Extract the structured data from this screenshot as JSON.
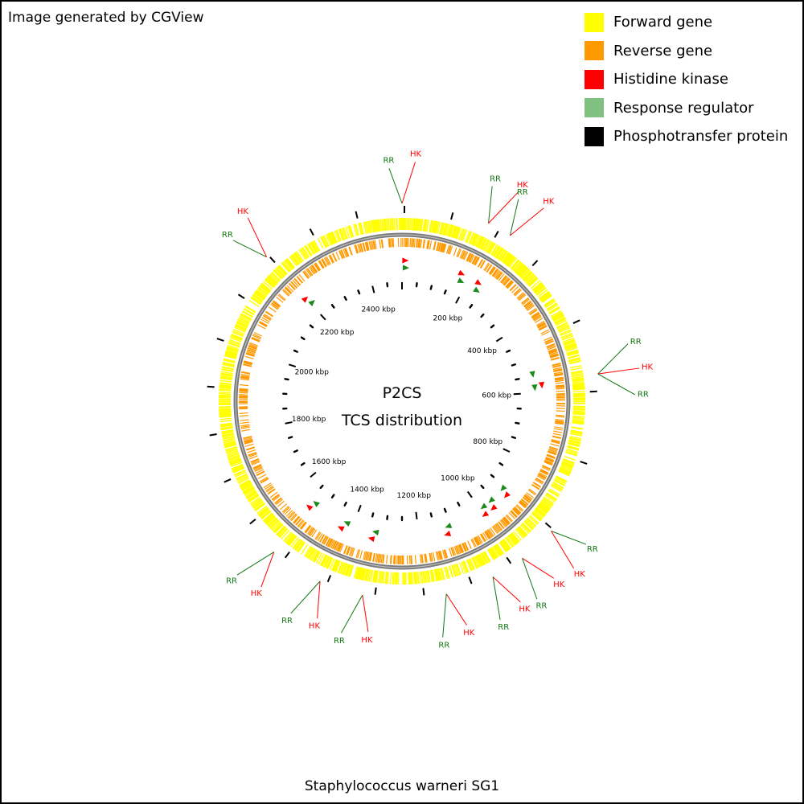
{
  "credit": "Image generated by CGView",
  "legend": [
    {
      "label": "Forward gene",
      "color": "#ffff00"
    },
    {
      "label": "Reverse gene",
      "color": "#ff9900"
    },
    {
      "label": "Histidine kinase",
      "color": "#ff0000"
    },
    {
      "label": "Response regulator",
      "color": "#80c080"
    },
    {
      "label": "Phosphotransfer protein",
      "color": "#000000"
    }
  ],
  "center": {
    "line1": "P2CS",
    "line2": "TCS distribution"
  },
  "caption": "Staphylococcus warneri SG1",
  "map": {
    "genome_length_kbp": 2500,
    "major_tick_step_kbp": 200,
    "minor_tick_step_kbp": 50,
    "tick_label_unit": "kbp",
    "tick_labels": [
      "200 kbp",
      "400 kbp",
      "600 kbp",
      "800 kbp",
      "1000 kbp",
      "1200 kbp",
      "1400 kbp",
      "1600 kbp",
      "1800 kbp",
      "2000 kbp",
      "2200 kbp",
      "2400 kbp"
    ],
    "tcs_labels": [
      {
        "pos_kbp": 0,
        "items": [
          {
            "text": "RR",
            "type": "RR"
          },
          {
            "text": "HK",
            "type": "HK"
          }
        ]
      },
      {
        "pos_kbp": 180,
        "items": [
          {
            "text": "RR",
            "type": "RR"
          },
          {
            "text": "HK",
            "type": "HK"
          }
        ]
      },
      {
        "pos_kbp": 230,
        "items": [
          {
            "text": "RR",
            "type": "RR"
          },
          {
            "text": "HK",
            "type": "HK"
          }
        ]
      },
      {
        "pos_kbp": 570,
        "items": [
          {
            "text": "RR",
            "type": "RR"
          },
          {
            "text": "HK",
            "type": "HK"
          },
          {
            "text": "RR",
            "type": "RR"
          }
        ]
      },
      {
        "pos_kbp": 910,
        "items": [
          {
            "text": "RR",
            "type": "RR"
          },
          {
            "text": "HK",
            "type": "HK"
          }
        ]
      },
      {
        "pos_kbp": 990,
        "items": [
          {
            "text": "HK",
            "type": "HK"
          },
          {
            "text": "RR",
            "type": "RR"
          }
        ]
      },
      {
        "pos_kbp": 1060,
        "items": [
          {
            "text": "HK",
            "type": "HK"
          },
          {
            "text": "RR",
            "type": "RR"
          }
        ]
      },
      {
        "pos_kbp": 1160,
        "items": [
          {
            "text": "HK",
            "type": "HK"
          },
          {
            "text": "RR",
            "type": "RR"
          }
        ]
      },
      {
        "pos_kbp": 1330,
        "items": [
          {
            "text": "HK",
            "type": "HK"
          },
          {
            "text": "RR",
            "type": "RR"
          }
        ]
      },
      {
        "pos_kbp": 1420,
        "items": [
          {
            "text": "HK",
            "type": "HK"
          },
          {
            "text": "RR",
            "type": "RR"
          }
        ]
      },
      {
        "pos_kbp": 1530,
        "items": [
          {
            "text": "HK",
            "type": "HK"
          },
          {
            "text": "RR",
            "type": "RR"
          }
        ]
      },
      {
        "pos_kbp": 2200,
        "items": [
          {
            "text": "RR",
            "type": "RR"
          },
          {
            "text": "HK",
            "type": "HK"
          }
        ]
      }
    ],
    "tcs_markers": [
      {
        "pos_kbp": 10,
        "type": "HK"
      },
      {
        "pos_kbp": 12,
        "type": "RR"
      },
      {
        "pos_kbp": 175,
        "type": "HK"
      },
      {
        "pos_kbp": 183,
        "type": "RR"
      },
      {
        "pos_kbp": 230,
        "type": "HK"
      },
      {
        "pos_kbp": 238,
        "type": "RR"
      },
      {
        "pos_kbp": 545,
        "type": "RR"
      },
      {
        "pos_kbp": 580,
        "type": "HK"
      },
      {
        "pos_kbp": 585,
        "type": "RR"
      },
      {
        "pos_kbp": 910,
        "type": "RR"
      },
      {
        "pos_kbp": 918,
        "type": "HK"
      },
      {
        "pos_kbp": 960,
        "type": "RR"
      },
      {
        "pos_kbp": 970,
        "type": "HK"
      },
      {
        "pos_kbp": 990,
        "type": "RR"
      },
      {
        "pos_kbp": 1000,
        "type": "HK"
      },
      {
        "pos_kbp": 1110,
        "type": "RR"
      },
      {
        "pos_kbp": 1120,
        "type": "HK"
      },
      {
        "pos_kbp": 1330,
        "type": "RR"
      },
      {
        "pos_kbp": 1338,
        "type": "HK"
      },
      {
        "pos_kbp": 1420,
        "type": "RR"
      },
      {
        "pos_kbp": 1430,
        "type": "HK"
      },
      {
        "pos_kbp": 1530,
        "type": "RR"
      },
      {
        "pos_kbp": 1538,
        "type": "HK"
      },
      {
        "pos_kbp": 2200,
        "type": "HK"
      },
      {
        "pos_kbp": 2208,
        "type": "RR"
      }
    ],
    "phosphotransfer_kbp": [
      5,
      105,
      205,
      305,
      455,
      605,
      755,
      905,
      1015,
      1105,
      1205,
      1305,
      1405,
      1505,
      1605,
      1705,
      1805,
      1905,
      2005,
      2105,
      2205,
      2305,
      2405
    ]
  }
}
